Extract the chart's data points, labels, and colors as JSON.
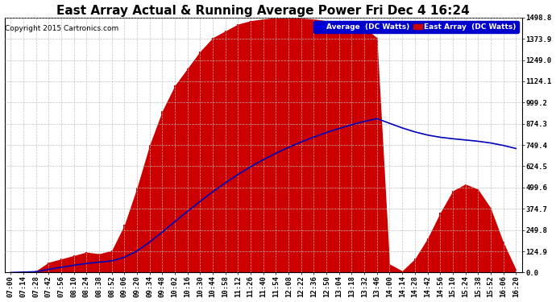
{
  "title": "East Array Actual & Running Average Power Fri Dec 4 16:24",
  "copyright": "Copyright 2015 Cartronics.com",
  "background_color": "#ffffff",
  "plot_bg_color": "#ffffff",
  "ytick_labels": [
    "0.0",
    "124.9",
    "249.8",
    "374.7",
    "499.6",
    "624.5",
    "749.4",
    "874.3",
    "999.2",
    "1124.1",
    "1249.0",
    "1373.9",
    "1498.8"
  ],
  "ytick_values": [
    0.0,
    124.9,
    249.8,
    374.7,
    499.6,
    624.5,
    749.4,
    874.3,
    999.2,
    1124.1,
    1249.0,
    1373.9,
    1498.8
  ],
  "ymax": 1498.8,
  "fill_color": "#cc0000",
  "line_color": "#0000bb",
  "grid_color": "#bbbbbb",
  "legend_avg_color": "#0000ff",
  "legend_avg_label": "Average  (DC Watts)",
  "legend_east_color": "#cc0000",
  "legend_east_label": "East Array  (DC Watts)",
  "title_fontsize": 11,
  "axis_fontsize": 6.5,
  "xtick_labels": [
    "07:00",
    "07:14",
    "07:28",
    "07:42",
    "07:56",
    "08:10",
    "08:24",
    "08:38",
    "08:52",
    "09:06",
    "09:20",
    "09:34",
    "09:48",
    "10:02",
    "10:16",
    "10:30",
    "10:44",
    "10:58",
    "11:12",
    "11:26",
    "11:40",
    "11:54",
    "12:08",
    "12:22",
    "12:36",
    "12:50",
    "13:04",
    "13:18",
    "13:32",
    "13:46",
    "14:00",
    "14:14",
    "14:28",
    "14:42",
    "14:56",
    "15:10",
    "15:24",
    "15:38",
    "15:52",
    "16:06",
    "16:20"
  ],
  "east_y": [
    0,
    5,
    10,
    60,
    80,
    100,
    120,
    110,
    130,
    280,
    500,
    750,
    950,
    1100,
    1200,
    1300,
    1380,
    1420,
    1460,
    1480,
    1490,
    1498,
    1498,
    1495,
    1490,
    1480,
    1470,
    1460,
    1440,
    1380,
    50,
    10,
    80,
    200,
    350,
    480,
    520,
    490,
    380,
    180,
    20
  ],
  "legend_bg_color": "#0000cc"
}
